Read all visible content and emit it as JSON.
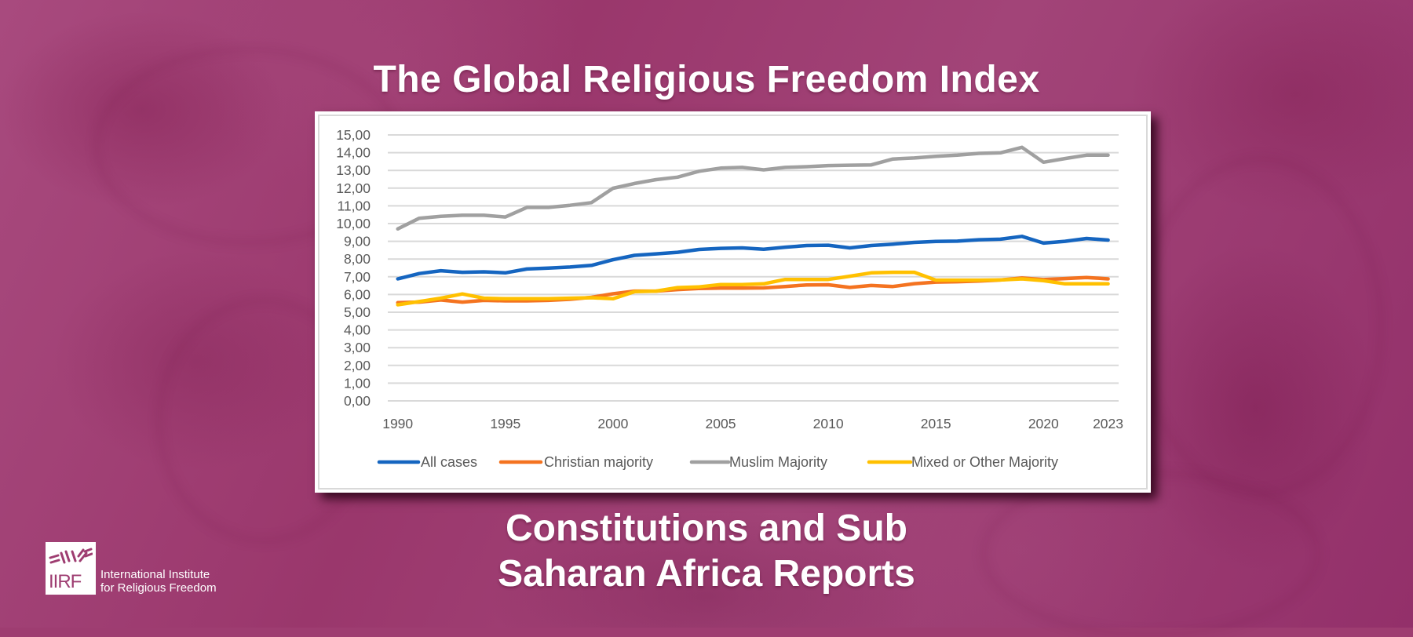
{
  "header": {
    "title": "The Global Religious Freedom Index"
  },
  "footer": {
    "subtitle_line1": "Constitutions and Sub",
    "subtitle_line2": "Saharan Africa Reports"
  },
  "logo": {
    "icon": "barbed-wire-icon",
    "letters": "IIRF",
    "name_line1": "International Institute",
    "name_line2": "for Religious Freedom"
  },
  "colors": {
    "background": "#9e3d71",
    "all_cases": "#1565c0",
    "christian": "#f47320",
    "muslim": "#a0a0a0",
    "mixed": "#ffc000"
  },
  "chart_data": {
    "type": "line",
    "title": "",
    "xlabel": "",
    "ylabel": "",
    "x": [
      1990,
      1991,
      1992,
      1993,
      1994,
      1995,
      1996,
      1997,
      1998,
      1999,
      2000,
      2001,
      2002,
      2003,
      2004,
      2005,
      2006,
      2007,
      2008,
      2009,
      2010,
      2011,
      2012,
      2013,
      2014,
      2015,
      2016,
      2017,
      2018,
      2019,
      2020,
      2021,
      2022,
      2023
    ],
    "xticks": [
      "1990",
      "1995",
      "2000",
      "2005",
      "2010",
      "2015",
      "2020",
      "2023"
    ],
    "xtick_values": [
      1990,
      1995,
      2000,
      2005,
      2010,
      2015,
      2020,
      2023
    ],
    "ylim": [
      0,
      15
    ],
    "yticks": [
      "0,00",
      "1,00",
      "2,00",
      "3,00",
      "4,00",
      "5,00",
      "6,00",
      "7,00",
      "8,00",
      "9,00",
      "10,00",
      "11,00",
      "12,00",
      "13,00",
      "14,00",
      "15,00"
    ],
    "grid": true,
    "legend_position": "bottom",
    "series": [
      {
        "name": "All cases",
        "color": "#1565c0",
        "values": [
          6.88,
          7.18,
          7.34,
          7.25,
          7.28,
          7.22,
          7.44,
          7.49,
          7.55,
          7.64,
          7.96,
          8.21,
          8.29,
          8.38,
          8.54,
          8.6,
          8.63,
          8.55,
          8.67,
          8.76,
          8.78,
          8.63,
          8.76,
          8.84,
          8.94,
          8.99,
          9.01,
          9.09,
          9.12,
          9.28,
          8.9,
          9.0,
          9.16,
          9.07
        ]
      },
      {
        "name": "Christian majority",
        "color": "#f47320",
        "values": [
          5.54,
          5.57,
          5.69,
          5.57,
          5.67,
          5.64,
          5.64,
          5.67,
          5.73,
          5.84,
          6.04,
          6.19,
          6.19,
          6.28,
          6.34,
          6.36,
          6.36,
          6.37,
          6.45,
          6.54,
          6.55,
          6.4,
          6.51,
          6.45,
          6.61,
          6.7,
          6.72,
          6.76,
          6.82,
          6.93,
          6.84,
          6.9,
          6.96,
          6.88
        ]
      },
      {
        "name": "Muslim Majority",
        "color": "#a0a0a0",
        "values": [
          9.7,
          10.3,
          10.41,
          10.47,
          10.47,
          10.37,
          10.91,
          10.91,
          11.03,
          11.18,
          11.99,
          12.26,
          12.48,
          12.62,
          12.95,
          13.13,
          13.17,
          13.03,
          13.17,
          13.21,
          13.27,
          13.29,
          13.31,
          13.64,
          13.7,
          13.79,
          13.86,
          13.96,
          13.99,
          14.3,
          13.46,
          13.67,
          13.86,
          13.86
        ]
      },
      {
        "name": "Mixed  or Other Majority",
        "color": "#ffc000",
        "values": [
          5.42,
          5.6,
          5.79,
          6.03,
          5.79,
          5.76,
          5.76,
          5.76,
          5.79,
          5.82,
          5.76,
          6.16,
          6.19,
          6.39,
          6.43,
          6.56,
          6.56,
          6.6,
          6.85,
          6.85,
          6.85,
          7.03,
          7.22,
          7.25,
          7.25,
          6.81,
          6.81,
          6.81,
          6.82,
          6.88,
          6.78,
          6.6,
          6.6,
          6.6
        ]
      }
    ]
  }
}
